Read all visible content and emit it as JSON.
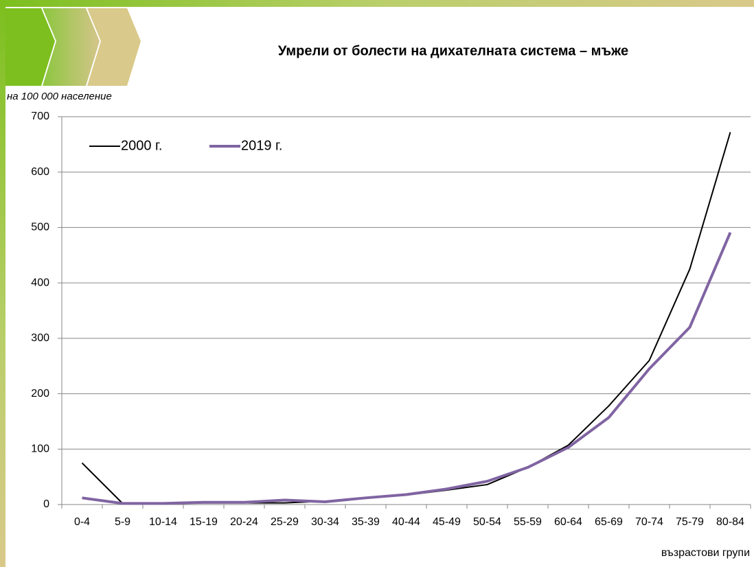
{
  "chart_data": {
    "type": "line",
    "title": "Умрели от болести на дихателната система – мъже",
    "y_axis_label": "на 100 000 население",
    "x_axis_label": "възрастови групи",
    "categories": [
      "0-4",
      "5-9",
      "10-14",
      "15-19",
      "20-24",
      "25-29",
      "30-34",
      "35-39",
      "40-44",
      "45-49",
      "50-54",
      "55-59",
      "60-64",
      "65-69",
      "70-74",
      "75-79",
      "80-84"
    ],
    "series": [
      {
        "name": "2000 г.",
        "color": "#000000",
        "values": [
          75,
          2,
          2,
          3,
          3,
          3,
          6,
          12,
          17,
          26,
          36,
          67,
          107,
          178,
          260,
          425,
          672
        ]
      },
      {
        "name": "2019 г.",
        "color": "#8064a2",
        "values": [
          12,
          2,
          2,
          4,
          4,
          8,
          5,
          12,
          18,
          28,
          42,
          67,
          103,
          157,
          245,
          320,
          491
        ]
      }
    ],
    "ylim": [
      0,
      700
    ],
    "yticks": [
      0,
      100,
      200,
      300,
      400,
      500,
      600,
      700
    ],
    "grid": true,
    "legend": "top-left"
  }
}
